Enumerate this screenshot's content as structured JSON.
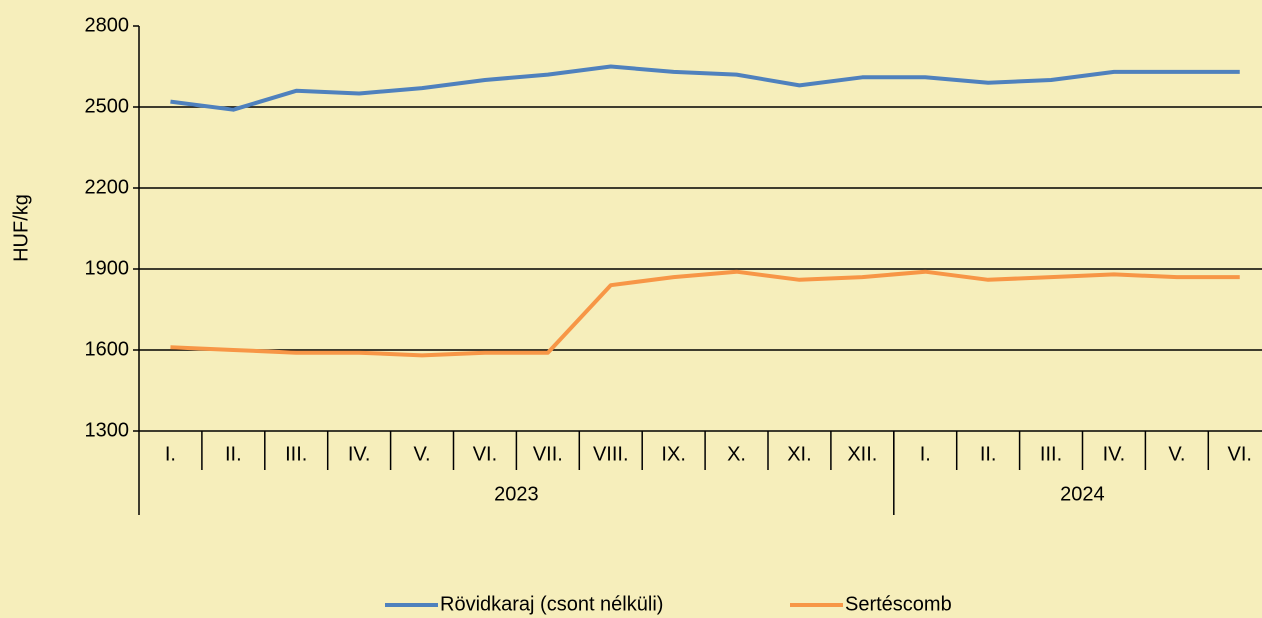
{
  "chart_data": {
    "type": "line",
    "y_label": "HUF/kg",
    "groups": [
      {
        "label": "2023",
        "categories": [
          "I.",
          "II.",
          "III.",
          "IV.",
          "V.",
          "VI.",
          "VII.",
          "VIII.",
          "IX.",
          "X.",
          "XI.",
          "XII."
        ]
      },
      {
        "label": "2024",
        "categories": [
          "I.",
          "II.",
          "III.",
          "IV.",
          "V.",
          "VI."
        ]
      }
    ],
    "series": [
      {
        "name": "Rövidkaraj (csont nélküli)",
        "color": "#4f81bd",
        "values": [
          2520,
          2490,
          2560,
          2550,
          2570,
          2600,
          2620,
          2650,
          2630,
          2620,
          2580,
          2610,
          2610,
          2590,
          2600,
          2630,
          2630,
          2630
        ]
      },
      {
        "name": "Sertéscomb",
        "color": "#f79646",
        "values": [
          1610,
          1600,
          1590,
          1590,
          1580,
          1590,
          1590,
          1840,
          1870,
          1890,
          1860,
          1870,
          1890,
          1860,
          1870,
          1880,
          1870,
          1870
        ]
      }
    ],
    "ylim": [
      1300,
      2800
    ],
    "yticks": [
      1300,
      1600,
      1900,
      2200,
      2500,
      2800
    ],
    "grid": true,
    "legend": "bottom"
  }
}
